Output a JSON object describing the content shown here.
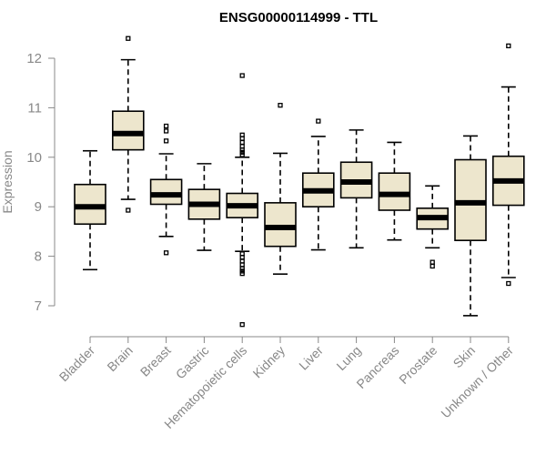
{
  "chart_data": {
    "type": "box",
    "title": "ENSG00000114999 - TTL",
    "xlabel": "",
    "ylabel": "Expression",
    "ylim": [
      6.5,
      12.5
    ],
    "yticks": [
      7,
      8,
      9,
      10,
      11,
      12
    ],
    "categories": [
      "Bladder",
      "Brain",
      "Breast",
      "Gastric",
      "Hematopoietic cells",
      "Kidney",
      "Liver",
      "Lung",
      "Pancreas",
      "Prostate",
      "Skin",
      "Unknown / Other"
    ],
    "boxes": [
      {
        "category": "Bladder",
        "min": 7.73,
        "q1": 8.65,
        "median": 9.0,
        "q3": 9.45,
        "max": 10.13,
        "outliers": []
      },
      {
        "category": "Brain",
        "min": 9.15,
        "q1": 10.15,
        "median": 10.48,
        "q3": 10.93,
        "max": 11.97,
        "outliers": [
          12.4,
          8.93
        ]
      },
      {
        "category": "Breast",
        "min": 8.4,
        "q1": 9.05,
        "median": 9.24,
        "q3": 9.55,
        "max": 10.07,
        "outliers": [
          10.63,
          10.53,
          10.33,
          8.07
        ]
      },
      {
        "category": "Gastric",
        "min": 8.12,
        "q1": 8.75,
        "median": 9.05,
        "q3": 9.35,
        "max": 9.87,
        "outliers": []
      },
      {
        "category": "Hematopoietic cells",
        "min": 8.1,
        "q1": 8.78,
        "median": 9.02,
        "q3": 9.27,
        "max": 10.0,
        "outliers": [
          11.65,
          10.45,
          10.38,
          10.3,
          10.22,
          10.15,
          10.1,
          10.05,
          8.05,
          7.98,
          7.9,
          7.83,
          7.75,
          7.7,
          7.65,
          6.62
        ]
      },
      {
        "category": "Kidney",
        "min": 7.64,
        "q1": 8.2,
        "median": 8.58,
        "q3": 9.08,
        "max": 10.08,
        "outliers": [
          11.05
        ]
      },
      {
        "category": "Liver",
        "min": 8.13,
        "q1": 9.0,
        "median": 9.32,
        "q3": 9.68,
        "max": 10.42,
        "outliers": [
          10.73
        ]
      },
      {
        "category": "Lung",
        "min": 8.17,
        "q1": 9.18,
        "median": 9.5,
        "q3": 9.9,
        "max": 10.55,
        "outliers": []
      },
      {
        "category": "Pancreas",
        "min": 8.33,
        "q1": 8.93,
        "median": 9.25,
        "q3": 9.68,
        "max": 10.3,
        "outliers": []
      },
      {
        "category": "Prostate",
        "min": 8.17,
        "q1": 8.55,
        "median": 8.78,
        "q3": 8.97,
        "max": 9.42,
        "outliers": [
          7.88,
          7.8
        ]
      },
      {
        "category": "Skin",
        "min": 6.8,
        "q1": 8.32,
        "median": 9.08,
        "q3": 9.95,
        "max": 10.43,
        "outliers": []
      },
      {
        "category": "Unknown / Other",
        "min": 7.57,
        "q1": 9.03,
        "median": 9.52,
        "q3": 10.02,
        "max": 11.42,
        "outliers": [
          12.25,
          7.45
        ]
      }
    ]
  }
}
